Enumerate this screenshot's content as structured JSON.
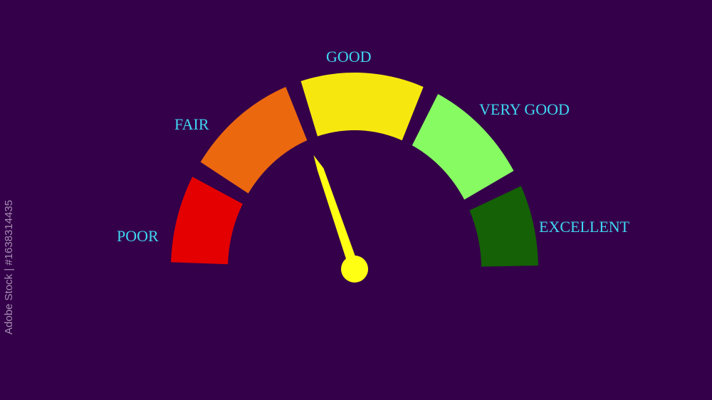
{
  "gauge": {
    "segments": [
      {
        "label": "POOR",
        "color": "#e40000"
      },
      {
        "label": "FAIR",
        "color": "#ec680f"
      },
      {
        "label": "GOOD",
        "color": "#f6e80e"
      },
      {
        "label": "VERY GOOD",
        "color": "#86fb62"
      },
      {
        "label": "EXCELLENT",
        "color": "#146106"
      }
    ],
    "needle_color": "#ffff14",
    "needle_value_fraction": 0.39,
    "label_color": "#3fd8f2",
    "background": "#34004a"
  },
  "watermark": "Adobe Stock | #163831443​5"
}
